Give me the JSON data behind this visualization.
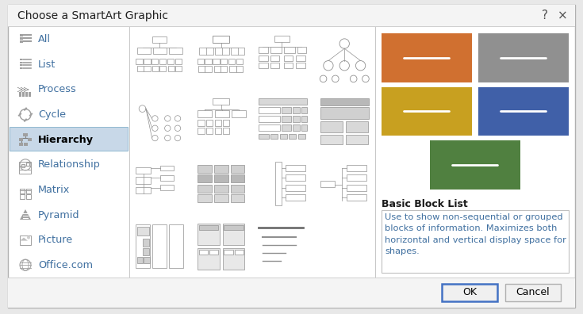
{
  "title": "Choose a SmartArt Graphic",
  "bg_outer": "#e8e8e8",
  "selected_item": "Hierarchy",
  "left_items": [
    "All",
    "List",
    "Process",
    "Cycle",
    "Hierarchy",
    "Relationship",
    "Matrix",
    "Pyramid",
    "Picture",
    "Office.com"
  ],
  "color_orange": "#d07030",
  "color_gray_block": "#909090",
  "color_yellow": "#c8a020",
  "color_blue_block": "#4060a8",
  "color_green": "#508040",
  "desc_title": "Basic Block List",
  "desc_text": "Use to show non-sequential or grouped\nblocks of information. Maximizes both\nhorizontal and vertical display space for\nshapes.",
  "ok_btn": "OK",
  "cancel_btn": "Cancel",
  "help_char": "?",
  "close_char": "×",
  "item_text_color": "#4070a0",
  "selected_text_color": "#000000",
  "desc_text_color": "#4070a0"
}
